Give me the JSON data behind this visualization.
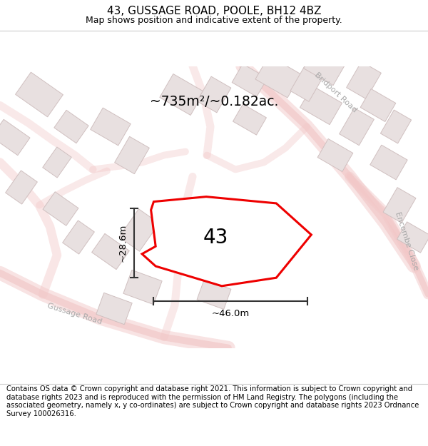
{
  "title": "43, GUSSAGE ROAD, POOLE, BH12 4BZ",
  "subtitle": "Map shows position and indicative extent of the property.",
  "footer": "Contains OS data © Crown copyright and database right 2021. This information is subject to Crown copyright and database rights 2023 and is reproduced with the permission of HM Land Registry. The polygons (including the associated geometry, namely x, y co-ordinates) are subject to Crown copyright and database rights 2023 Ordnance Survey 100026316.",
  "area_label": "~735m²/~0.182ac.",
  "width_label": "~46.0m",
  "height_label": "~28.6m",
  "property_number": "43",
  "bg_color": "#f7f3f3",
  "road_color": "#f2c8c8",
  "building_color": "#e8e0e0",
  "building_outline": "#d0c0c0",
  "plot_color": "#ee0000",
  "plot_linewidth": 2.2,
  "title_fontsize": 11,
  "subtitle_fontsize": 9,
  "footer_fontsize": 7.2,
  "road_label_color": "#aaaaaa",
  "dim_color": "#333333"
}
